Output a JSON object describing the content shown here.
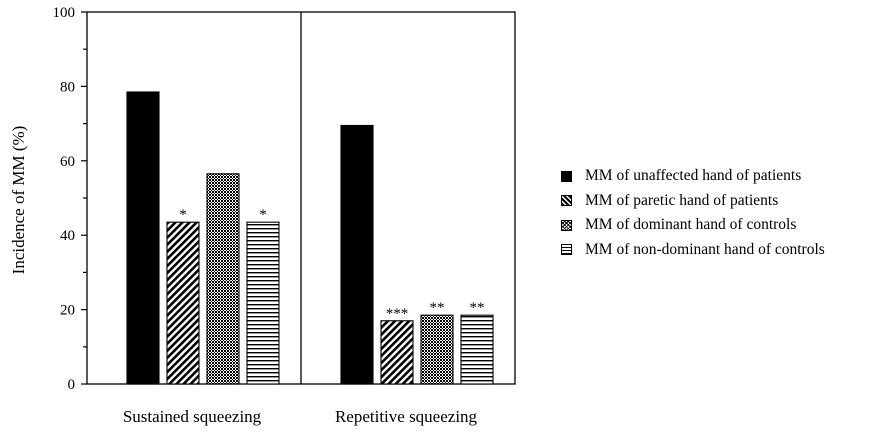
{
  "chart_data": {
    "type": "bar",
    "title": "",
    "xlabel": "",
    "ylabel": "Incidence of MM (%)",
    "ylim": [
      0,
      100
    ],
    "yticks": [
      "0",
      "20",
      "40",
      "60",
      "80",
      "100"
    ],
    "grid": false,
    "legend_position": "right",
    "categories": [
      "Sustained squeezing",
      "Repetitive squeezing"
    ],
    "series": [
      {
        "name": "MM of unaffected hand of patients",
        "pattern": "solid",
        "values": [
          78.5,
          69.5
        ],
        "annotations": [
          "",
          ""
        ]
      },
      {
        "name": "MM of paretic hand of patients",
        "pattern": "diagonal-hatch",
        "values": [
          43.5,
          17
        ],
        "annotations": [
          "*",
          "***"
        ]
      },
      {
        "name": "MM of dominant hand of controls",
        "pattern": "crosshatch",
        "values": [
          56.5,
          18.5
        ],
        "annotations": [
          "",
          "**"
        ]
      },
      {
        "name": "MM of non-dominant hand of controls",
        "pattern": "horizontal-lines",
        "values": [
          43.5,
          18.5
        ],
        "annotations": [
          "*",
          "**"
        ]
      }
    ],
    "colors": {
      "ink": "#000000",
      "background": "#ffffff"
    }
  }
}
